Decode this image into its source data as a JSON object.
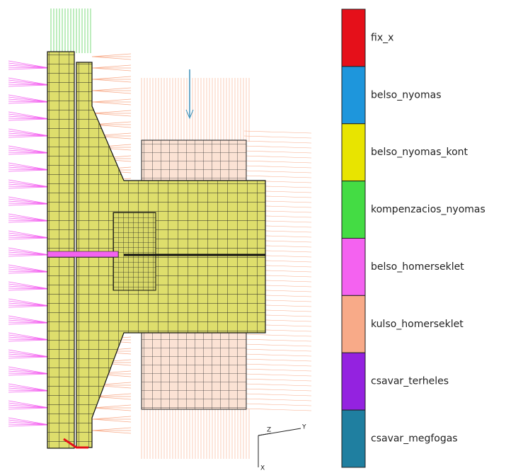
{
  "legend": {
    "items": [
      {
        "label": "fix_x",
        "color": "#e5101a"
      },
      {
        "label": "belso_nyomas",
        "color": "#1e96dc"
      },
      {
        "label": "belso_nyomas_kont",
        "color": "#e8e400"
      },
      {
        "label": "kompenzacios_nyomas",
        "color": "#44dc44"
      },
      {
        "label": "belso_homerseklet",
        "color": "#f462f0"
      },
      {
        "label": "kulso_homerseklet",
        "color": "#f8aa88"
      },
      {
        "label": "csavar_terheles",
        "color": "#9422e0"
      },
      {
        "label": "csavar_megfogas",
        "color": "#1f7fa0"
      }
    ]
  },
  "axes_triad": {
    "z": "Z",
    "y": "Y",
    "x": "X"
  }
}
